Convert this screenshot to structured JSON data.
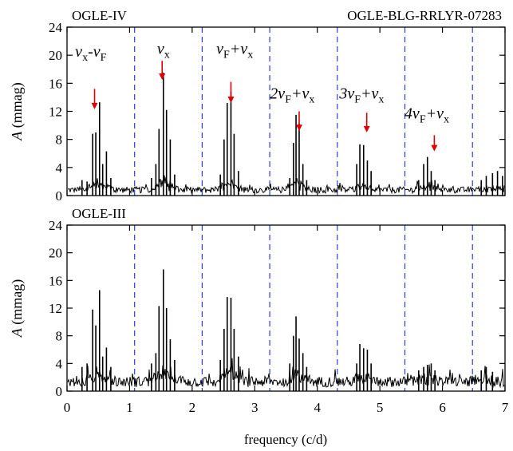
{
  "chart_data": [
    {
      "type": "line",
      "panel_label": "OGLE-IV",
      "star_id": "OGLE-BLG-RRLYR-07283",
      "xlabel": "",
      "ylabel_var": "A",
      "ylabel_unit": " (mmag)",
      "xlim": [
        0,
        7
      ],
      "ylim": [
        0,
        24
      ],
      "yticks": [
        "0",
        "4",
        "8",
        "12",
        "16",
        "20",
        "24"
      ],
      "dashed_lines_x": [
        1.08,
        2.16,
        3.24,
        4.32,
        5.4,
        6.48
      ],
      "noise_level": 1.0,
      "peaks": [
        {
          "x": 0.24,
          "y": 2.2
        },
        {
          "x": 0.32,
          "y": 2.0
        },
        {
          "x": 0.41,
          "y": 8.8
        },
        {
          "x": 0.46,
          "y": 9.0
        },
        {
          "x": 0.52,
          "y": 13.3
        },
        {
          "x": 0.57,
          "y": 4.5
        },
        {
          "x": 0.63,
          "y": 6.3
        },
        {
          "x": 0.7,
          "y": 2.5
        },
        {
          "x": 1.35,
          "y": 2.5
        },
        {
          "x": 1.42,
          "y": 4.5
        },
        {
          "x": 1.47,
          "y": 9.5
        },
        {
          "x": 1.54,
          "y": 17.5
        },
        {
          "x": 1.59,
          "y": 12.2
        },
        {
          "x": 1.65,
          "y": 8.0
        },
        {
          "x": 1.72,
          "y": 3.0
        },
        {
          "x": 2.45,
          "y": 3.0
        },
        {
          "x": 2.51,
          "y": 8.0
        },
        {
          "x": 2.56,
          "y": 13.2
        },
        {
          "x": 2.62,
          "y": 14.8
        },
        {
          "x": 2.67,
          "y": 8.8
        },
        {
          "x": 2.74,
          "y": 3.5
        },
        {
          "x": 3.56,
          "y": 2.5
        },
        {
          "x": 3.62,
          "y": 7.5
        },
        {
          "x": 3.66,
          "y": 11.5
        },
        {
          "x": 3.71,
          "y": 10.3
        },
        {
          "x": 3.77,
          "y": 4.5
        },
        {
          "x": 3.83,
          "y": 2.2
        },
        {
          "x": 4.63,
          "y": 4.5
        },
        {
          "x": 4.68,
          "y": 7.3
        },
        {
          "x": 4.74,
          "y": 7.2
        },
        {
          "x": 4.8,
          "y": 5.0
        },
        {
          "x": 4.86,
          "y": 3.5
        },
        {
          "x": 5.62,
          "y": 2.2
        },
        {
          "x": 5.7,
          "y": 4.5
        },
        {
          "x": 5.76,
          "y": 5.5
        },
        {
          "x": 5.82,
          "y": 3.5
        },
        {
          "x": 5.88,
          "y": 2.2
        },
        {
          "x": 6.62,
          "y": 2.2
        },
        {
          "x": 6.7,
          "y": 2.8
        },
        {
          "x": 6.8,
          "y": 3.2
        },
        {
          "x": 6.88,
          "y": 3.5
        },
        {
          "x": 6.96,
          "y": 2.8
        }
      ],
      "annotations": [
        {
          "label": [
            "ν",
            "x",
            "-ν",
            "F"
          ],
          "arrow_x": 0.44,
          "label_x": 0.38,
          "label_y": 19.8,
          "arrow_y0": 15.2,
          "arrow_y1": 12.3
        },
        {
          "label": [
            "ν",
            "x",
            "",
            ""
          ],
          "arrow_x": 1.52,
          "label_x": 1.54,
          "label_y": 20.2,
          "arrow_y0": 19.2,
          "arrow_y1": 16.5
        },
        {
          "label": [
            "ν",
            "F",
            "+ν",
            "x"
          ],
          "arrow_x": 2.62,
          "label_x": 2.68,
          "label_y": 20.2,
          "arrow_y0": 16.2,
          "arrow_y1": 13.2
        },
        {
          "label": [
            "2ν",
            "F",
            "+ν",
            "x"
          ],
          "arrow_x": 3.71,
          "label_x": 3.6,
          "label_y": 13.8,
          "arrow_y0": 12.0,
          "arrow_y1": 9.2
        },
        {
          "label": [
            "3ν",
            "F",
            "+ν",
            "x"
          ],
          "arrow_x": 4.79,
          "label_x": 4.71,
          "label_y": 13.8,
          "arrow_y0": 11.8,
          "arrow_y1": 9.0
        },
        {
          "label": [
            "4ν",
            "F",
            "+ν",
            "x"
          ],
          "arrow_x": 5.87,
          "label_x": 5.75,
          "label_y": 11.0,
          "arrow_y0": 8.6,
          "arrow_y1": 6.3
        }
      ]
    },
    {
      "type": "line",
      "panel_label": "OGLE-III",
      "star_id": "",
      "xlabel": "frequency (c/d)",
      "ylabel_var": "A",
      "ylabel_unit": " (mmag)",
      "xlim": [
        0,
        7
      ],
      "ylim": [
        0,
        24
      ],
      "yticks": [
        "0",
        "4",
        "8",
        "12",
        "16",
        "20",
        "24"
      ],
      "xticks": [
        "0",
        "1",
        "2",
        "3",
        "4",
        "5",
        "6",
        "7"
      ],
      "dashed_lines_x": [
        1.08,
        2.16,
        3.24,
        4.32,
        5.4,
        6.48
      ],
      "noise_level": 1.7,
      "peaks": [
        {
          "x": 0.24,
          "y": 3.5
        },
        {
          "x": 0.32,
          "y": 4.0
        },
        {
          "x": 0.41,
          "y": 11.8
        },
        {
          "x": 0.46,
          "y": 9.5
        },
        {
          "x": 0.52,
          "y": 14.6
        },
        {
          "x": 0.57,
          "y": 5.0
        },
        {
          "x": 0.63,
          "y": 6.3
        },
        {
          "x": 0.7,
          "y": 3.5
        },
        {
          "x": 1.35,
          "y": 4.0
        },
        {
          "x": 1.42,
          "y": 5.5
        },
        {
          "x": 1.47,
          "y": 12.3
        },
        {
          "x": 1.54,
          "y": 17.6
        },
        {
          "x": 1.59,
          "y": 12.0
        },
        {
          "x": 1.65,
          "y": 7.5
        },
        {
          "x": 1.72,
          "y": 4.5
        },
        {
          "x": 2.45,
          "y": 4.5
        },
        {
          "x": 2.51,
          "y": 9.0
        },
        {
          "x": 2.56,
          "y": 13.6
        },
        {
          "x": 2.62,
          "y": 13.5
        },
        {
          "x": 2.67,
          "y": 9.0
        },
        {
          "x": 2.74,
          "y": 5.0
        },
        {
          "x": 3.56,
          "y": 4.0
        },
        {
          "x": 3.62,
          "y": 8.0
        },
        {
          "x": 3.66,
          "y": 10.8
        },
        {
          "x": 3.71,
          "y": 7.6
        },
        {
          "x": 3.77,
          "y": 5.5
        },
        {
          "x": 3.83,
          "y": 3.5
        },
        {
          "x": 4.63,
          "y": 4.0
        },
        {
          "x": 4.68,
          "y": 6.8
        },
        {
          "x": 4.74,
          "y": 6.2
        },
        {
          "x": 4.8,
          "y": 6.0
        },
        {
          "x": 4.86,
          "y": 4.0
        },
        {
          "x": 5.62,
          "y": 3.0
        },
        {
          "x": 5.7,
          "y": 3.5
        },
        {
          "x": 5.76,
          "y": 3.8
        },
        {
          "x": 5.82,
          "y": 4.0
        },
        {
          "x": 5.88,
          "y": 3.0
        },
        {
          "x": 6.62,
          "y": 3.0
        },
        {
          "x": 6.7,
          "y": 3.5
        },
        {
          "x": 6.8,
          "y": 2.8
        }
      ],
      "annotations": []
    }
  ]
}
